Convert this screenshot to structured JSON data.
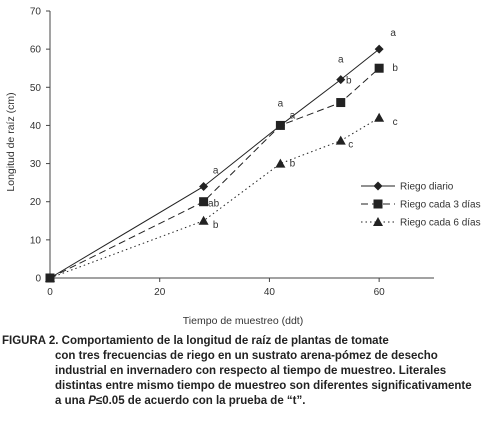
{
  "chart_data": {
    "type": "line",
    "ylabel": "Longitud de raíz (cm)",
    "xlabel": "Tiempo de muestreo (ddt)",
    "xlim": [
      0,
      70
    ],
    "ylim": [
      0,
      70
    ],
    "x_ticks": [
      "0",
      "20",
      "40",
      "60"
    ],
    "y_ticks": [
      "0",
      "10",
      "20",
      "30",
      "40",
      "50",
      "60",
      "70"
    ],
    "grid": false,
    "legend_position": "right",
    "series": [
      {
        "name": "Riego diario",
        "marker": "diamond",
        "line": "solid",
        "points": [
          {
            "x": 0,
            "y": 0,
            "label": ""
          },
          {
            "x": 28,
            "y": 24,
            "label": "a"
          },
          {
            "x": 42,
            "y": 40,
            "label": "a"
          },
          {
            "x": 53,
            "y": 52,
            "label": "a"
          },
          {
            "x": 60,
            "y": 60,
            "label": "a"
          }
        ]
      },
      {
        "name": "Riego cada 3 días",
        "marker": "square",
        "line": "dashed",
        "points": [
          {
            "x": 0,
            "y": 0,
            "label": ""
          },
          {
            "x": 28,
            "y": 20,
            "label": "ab"
          },
          {
            "x": 42,
            "y": 40,
            "label": "a"
          },
          {
            "x": 53,
            "y": 46,
            "label": "b"
          },
          {
            "x": 60,
            "y": 55,
            "label": "b"
          }
        ]
      },
      {
        "name": "Riego cada 6 días",
        "marker": "triangle",
        "line": "dotted",
        "points": [
          {
            "x": 0,
            "y": 0,
            "label": ""
          },
          {
            "x": 28,
            "y": 15,
            "label": "b"
          },
          {
            "x": 42,
            "y": 30,
            "label": "b"
          },
          {
            "x": 53,
            "y": 36,
            "label": "c"
          },
          {
            "x": 60,
            "y": 42,
            "label": "c"
          }
        ]
      }
    ]
  },
  "caption": {
    "label": "FIGURA 2.",
    "text": "Comportamiento de la longitud de raíz de plantas de tomate",
    "rest_before_italic": "con tres frecuencias de riego en un sustrato arena-pómez de desecho industrial en invernadero con respecto al tiempo de muestreo. Literales distintas entre mismo tiempo de muestreo son diferentes significativamente a una ",
    "italic": "P",
    "rest_after_italic": "≤0.05 de acuerdo con la prueba de “t”."
  },
  "colors": {
    "line": "#222222",
    "axis": "#444444",
    "text": "#333333"
  }
}
